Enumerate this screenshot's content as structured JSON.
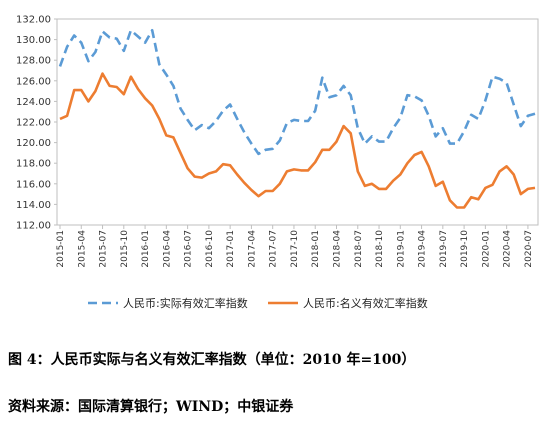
{
  "chart_data": {
    "type": "line",
    "title": "",
    "xlabel": "",
    "ylabel": "",
    "ylim": [
      112.0,
      132.0
    ],
    "yticks": [
      "112.00",
      "114.00",
      "116.00",
      "118.00",
      "120.00",
      "122.00",
      "124.00",
      "126.00",
      "128.00",
      "130.00",
      "132.00"
    ],
    "xticks": [
      "2015-01",
      "2015-04",
      "2015-07",
      "2015-10",
      "2016-01",
      "2016-04",
      "2016-07",
      "2016-10",
      "2017-01",
      "2017-04",
      "2017-07",
      "2017-10",
      "2018-01",
      "2018-04",
      "2018-07",
      "2018-10",
      "2019-01",
      "2019-04",
      "2019-07",
      "2019-10",
      "2020-01",
      "2020-04",
      "2020-07"
    ],
    "x": [
      "2015-01",
      "2015-02",
      "2015-03",
      "2015-04",
      "2015-05",
      "2015-06",
      "2015-07",
      "2015-08",
      "2015-09",
      "2015-10",
      "2015-11",
      "2015-12",
      "2016-01",
      "2016-02",
      "2016-03",
      "2016-04",
      "2016-05",
      "2016-06",
      "2016-07",
      "2016-08",
      "2016-09",
      "2016-10",
      "2016-11",
      "2016-12",
      "2017-01",
      "2017-02",
      "2017-03",
      "2017-04",
      "2017-05",
      "2017-06",
      "2017-07",
      "2017-08",
      "2017-09",
      "2017-10",
      "2017-11",
      "2017-12",
      "2018-01",
      "2018-02",
      "2018-03",
      "2018-04",
      "2018-05",
      "2018-06",
      "2018-07",
      "2018-08",
      "2018-09",
      "2018-10",
      "2018-11",
      "2018-12",
      "2019-01",
      "2019-02",
      "2019-03",
      "2019-04",
      "2019-05",
      "2019-06",
      "2019-07",
      "2019-08",
      "2019-09",
      "2019-10",
      "2019-11",
      "2019-12",
      "2020-01",
      "2020-02",
      "2020-03",
      "2020-04",
      "2020-05",
      "2020-06",
      "2020-07",
      "2020-08"
    ],
    "legend_position": "bottom",
    "series": [
      {
        "name": "人民币:实际有效汇率指数",
        "color": "#5b9bd5",
        "style": "dashed",
        "values": [
          127.4,
          129.3,
          130.4,
          129.7,
          127.9,
          128.8,
          130.8,
          130.2,
          130.1,
          128.9,
          130.9,
          130.3,
          129.7,
          130.9,
          127.6,
          126.6,
          125.5,
          123.3,
          122.2,
          121.2,
          121.7,
          121.4,
          122.1,
          123.1,
          123.7,
          122.3,
          121.0,
          119.9,
          118.9,
          119.3,
          119.4,
          120.2,
          121.9,
          122.2,
          122.1,
          122.1,
          123.1,
          126.3,
          124.4,
          124.6,
          125.5,
          124.6,
          121.4,
          119.9,
          120.6,
          120.1,
          120.1,
          121.4,
          122.4,
          124.6,
          124.5,
          124.1,
          122.6,
          120.6,
          121.4,
          119.9,
          119.9,
          121.1,
          122.7,
          122.3,
          124.1,
          126.4,
          126.2,
          125.8,
          123.7,
          121.6,
          122.6,
          122.8
        ]
      },
      {
        "name": "人民币:名义有效汇率指数",
        "color": "#ed7d31",
        "style": "solid",
        "values": [
          122.3,
          122.6,
          125.1,
          125.1,
          124.0,
          125.0,
          126.7,
          125.5,
          125.4,
          124.7,
          126.4,
          125.2,
          124.3,
          123.6,
          122.3,
          120.7,
          120.5,
          119.0,
          117.5,
          116.7,
          116.6,
          117.0,
          117.2,
          117.9,
          117.8,
          116.9,
          116.1,
          115.4,
          114.8,
          115.3,
          115.3,
          116.0,
          117.2,
          117.4,
          117.3,
          117.3,
          118.1,
          119.3,
          119.3,
          120.1,
          121.6,
          120.9,
          117.2,
          115.8,
          116.0,
          115.5,
          115.5,
          116.3,
          116.9,
          118.0,
          118.8,
          119.1,
          117.7,
          115.8,
          116.2,
          114.4,
          113.7,
          113.7,
          114.7,
          114.5,
          115.6,
          115.9,
          117.2,
          117.7,
          116.9,
          115.0,
          115.5,
          115.6
        ]
      }
    ]
  },
  "captions": {
    "figure": "图 4：人民币实际与名义有效汇率指数（单位：2010 年=100）",
    "source": "资料来源：国际清算银行；WIND；中银证券"
  }
}
